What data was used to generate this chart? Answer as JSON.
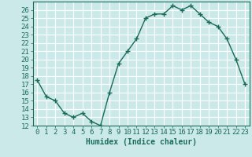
{
  "x": [
    0,
    1,
    2,
    3,
    4,
    5,
    6,
    7,
    8,
    9,
    10,
    11,
    12,
    13,
    14,
    15,
    16,
    17,
    18,
    19,
    20,
    21,
    22,
    23
  ],
  "y": [
    17.5,
    15.5,
    15.0,
    13.5,
    13.0,
    13.5,
    12.5,
    12.0,
    16.0,
    19.5,
    21.0,
    22.5,
    25.0,
    25.5,
    25.5,
    26.5,
    26.0,
    26.5,
    25.5,
    24.5,
    24.0,
    22.5,
    20.0,
    17.0
  ],
  "line_color": "#1a6b5a",
  "marker": "+",
  "marker_size": 4,
  "xlabel": "Humidex (Indice chaleur)",
  "bg_color": "#cce9e9",
  "grid_color": "#ffffff",
  "ylim": [
    12,
    27
  ],
  "xlim": [
    -0.5,
    23.5
  ],
  "yticks": [
    12,
    13,
    14,
    15,
    16,
    17,
    18,
    19,
    20,
    21,
    22,
    23,
    24,
    25,
    26
  ],
  "xticks": [
    0,
    1,
    2,
    3,
    4,
    5,
    6,
    7,
    8,
    9,
    10,
    11,
    12,
    13,
    14,
    15,
    16,
    17,
    18,
    19,
    20,
    21,
    22,
    23
  ],
  "xtick_labels": [
    "0",
    "1",
    "2",
    "3",
    "4",
    "5",
    "6",
    "7",
    "8",
    "9",
    "10",
    "11",
    "12",
    "13",
    "14",
    "15",
    "16",
    "17",
    "18",
    "19",
    "20",
    "21",
    "22",
    "23"
  ],
  "line_width": 1.0,
  "font_size": 6.5
}
